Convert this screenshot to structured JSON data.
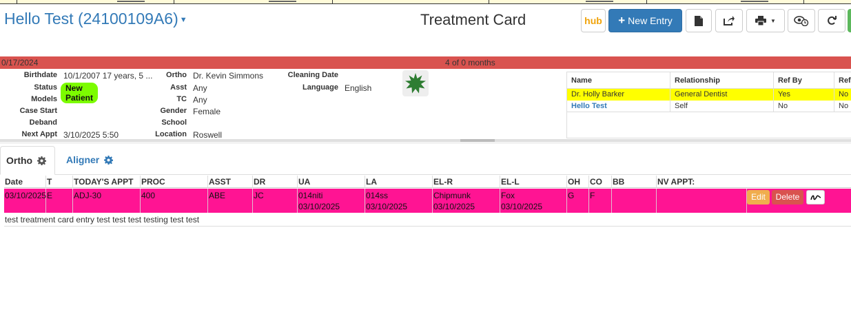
{
  "header": {
    "patient_name": "Hello Test (24100109A6)",
    "page_title": "Treatment Card"
  },
  "toolbar": {
    "hub_label": "hub",
    "new_entry_label": "New Entry",
    "icons": [
      "document-icon",
      "share-icon",
      "print-icon",
      "view-history-icon",
      "refresh-icon"
    ]
  },
  "date_bar": {
    "left": "0/17/2024",
    "center": "4 of 0 months",
    "color": "#d9534f"
  },
  "patient_info": {
    "col1": [
      {
        "label": "Birthdate",
        "value": "10/1/2007 17 years, 5 ..."
      },
      {
        "label": "Status",
        "value": "New Patient"
      },
      {
        "label": "Models",
        "value": ""
      },
      {
        "label": "Case Start",
        "value": ""
      },
      {
        "label": "Deband",
        "value": ""
      },
      {
        "label": "Next Appt",
        "value": "3/10/2025 5:50"
      }
    ],
    "col2": [
      {
        "label": "Ortho",
        "value": "Dr. Kevin Simmons"
      },
      {
        "label": "Asst",
        "value": "Any"
      },
      {
        "label": "TC",
        "value": "Any"
      },
      {
        "label": "Gender",
        "value": "Female"
      },
      {
        "label": "School",
        "value": ""
      },
      {
        "label": "Location",
        "value": "Roswell"
      }
    ],
    "col3": [
      {
        "label": "Cleaning Date",
        "value": ""
      },
      {
        "label": "Language",
        "value": "English"
      }
    ],
    "status_color": "#7cfc00"
  },
  "referrals": {
    "headers": [
      "Name",
      "Relationship",
      "Ref By",
      "Ref"
    ],
    "rows": [
      {
        "name": "Dr. Holly Barker",
        "relationship": "General Dentist",
        "ref_by": "Yes",
        "ref": "No"
      },
      {
        "name": "Hello Test",
        "relationship": "Self",
        "ref_by": "No",
        "ref": "No"
      }
    ]
  },
  "tabs": [
    {
      "label": "Ortho",
      "active": true
    },
    {
      "label": "Aligner",
      "active": false
    }
  ],
  "treatment": {
    "columns": [
      "Date",
      "T",
      "TODAY'S APPT",
      "PROC",
      "ASST",
      "DR",
      "UA",
      "LA",
      "EL-R",
      "EL-L",
      "OH",
      "CO",
      "BB",
      "NV APPT:"
    ],
    "entry": {
      "date": "03/10/2025",
      "t": "E",
      "todays_appt": "ADJ-30",
      "proc": "400",
      "asst": "ABE",
      "dr": "JC",
      "ua": "014niti",
      "ua_date": "03/10/2025",
      "la": "014ss",
      "la_date": "03/10/2025",
      "el_r": "Chipmunk",
      "el_r_date": "03/10/2025",
      "el_l": "Fox",
      "el_l_date": "03/10/2025",
      "oh": "G",
      "co": "F",
      "bb": "",
      "nv_appt": "",
      "row_color": "#ff1493"
    },
    "edit_label": "Edit",
    "delete_label": "Delete",
    "note": "test treatment card entry test test test testing test test"
  }
}
